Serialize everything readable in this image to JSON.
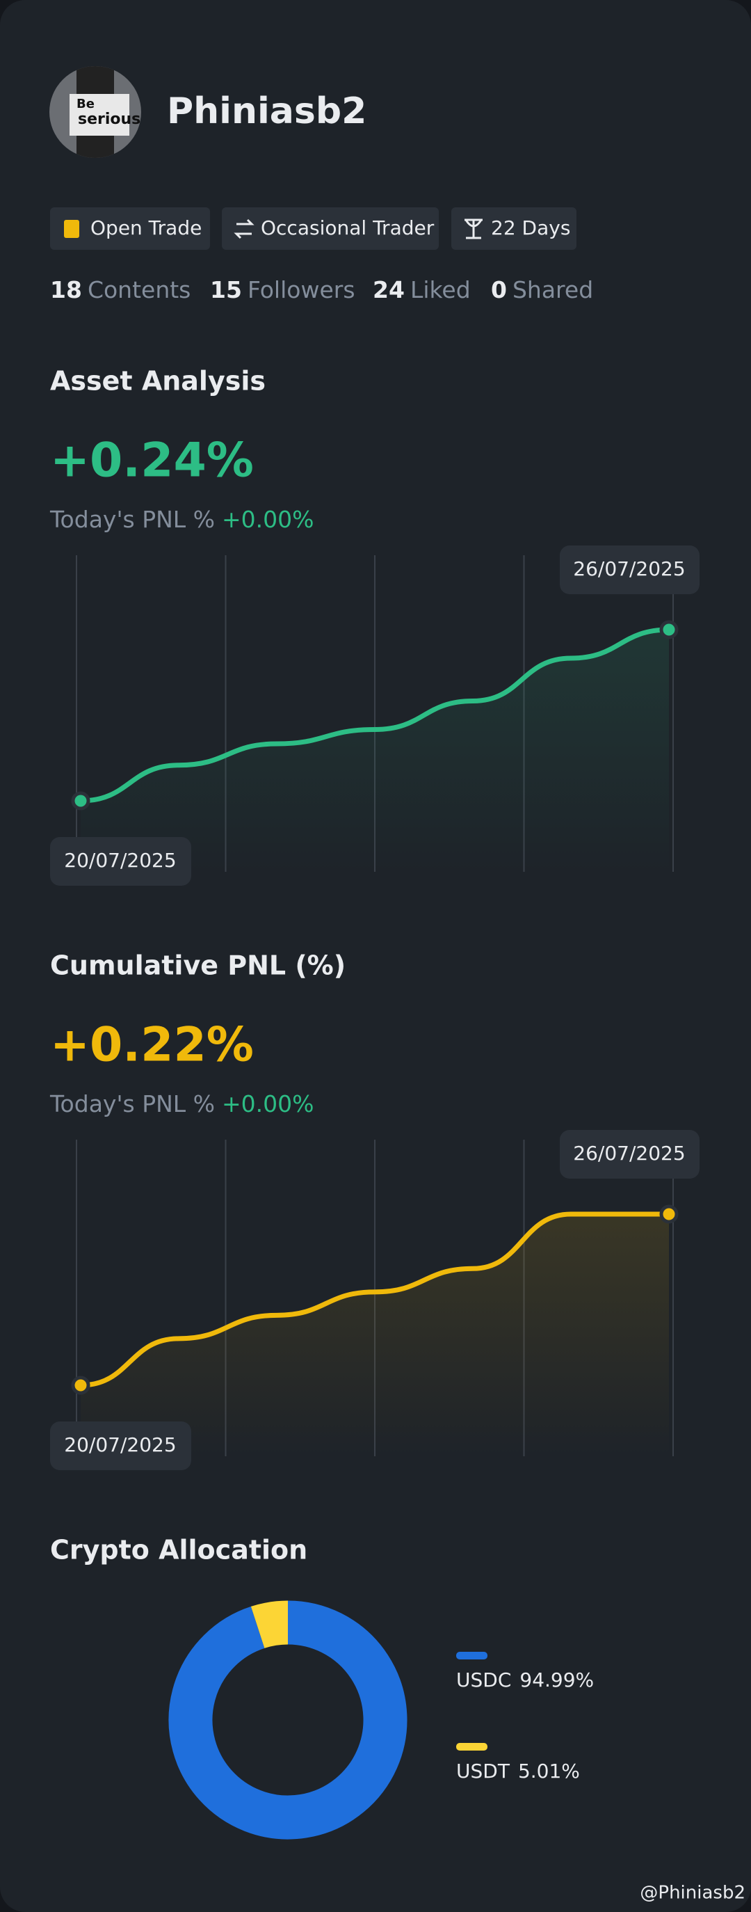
{
  "profile": {
    "avatar_text": [
      "Be",
      "serious"
    ],
    "name": "Phiniasb2",
    "badges": [
      "Open Trade",
      "Occasional Trader",
      "22 Days"
    ],
    "stats": [
      {
        "value": 18,
        "label": "Contents"
      },
      {
        "value": 15,
        "label": "Followers"
      },
      {
        "value": 24,
        "label": "Liked"
      },
      {
        "value": 0,
        "label": "Shared"
      }
    ]
  },
  "chart_data": [
    {
      "type": "line",
      "title": "Asset Analysis",
      "headline": "+0.24%",
      "subtitle_label": "Today's PNL %",
      "subtitle_value": "+0.00%",
      "categories": [
        "20/07/2025",
        null,
        null,
        null,
        null,
        null,
        "26/07/2025"
      ],
      "values": [
        0,
        0.05,
        0.08,
        0.1,
        0.14,
        0.2,
        0.24
      ],
      "color": "#2dbd85"
    },
    {
      "type": "line",
      "title": "Cumulative PNL (%)",
      "headline": "+0.22%",
      "subtitle_label": "Today's PNL %",
      "subtitle_value": "+0.00%",
      "categories": [
        "20/07/2025",
        null,
        null,
        null,
        null,
        null,
        "26/07/2025"
      ],
      "values": [
        0,
        0.06,
        0.09,
        0.12,
        0.15,
        0.22,
        0.22
      ],
      "color": "#f0b90b"
    },
    {
      "type": "pie",
      "title": "Crypto Allocation",
      "categories": [
        "USDC",
        "USDT"
      ],
      "values": [
        94.99,
        5.01
      ],
      "value_labels": [
        "94.99%",
        "5.01%"
      ],
      "colors": [
        "#1f6fdc",
        "#fcd535"
      ]
    }
  ],
  "footer": "@Phiniasb2"
}
